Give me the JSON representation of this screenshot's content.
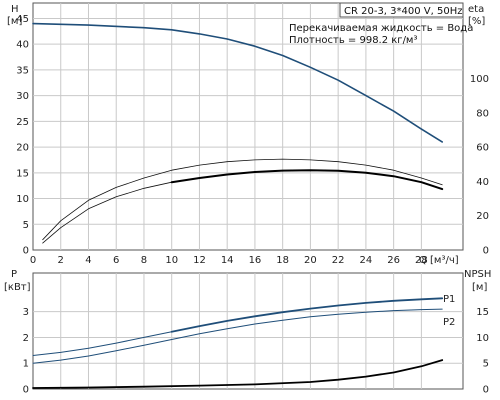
{
  "chart_data": [
    {
      "type": "line",
      "panel": "top",
      "title": "CR 20-3, 3*400 V, 50Hz",
      "info_lines": [
        "Перекачиваемая жидкость = Вода",
        "Плотность = 998.2 кг/м³"
      ],
      "xlabel": "Q",
      "xunit": "[м³/ч]",
      "xlim": [
        0,
        31
      ],
      "xticks": [
        0,
        2,
        4,
        6,
        8,
        10,
        12,
        14,
        16,
        18,
        20,
        22,
        24,
        26,
        28
      ],
      "ylabel_left": "H",
      "yunit_left": "[м]",
      "ylim_left": [
        0,
        48
      ],
      "yticks_left": [
        0,
        5,
        10,
        15,
        20,
        25,
        30,
        35,
        40,
        45
      ],
      "ylabel_right": "eta",
      "yunit_right": "[%]",
      "ylim_right": [
        0,
        144
      ],
      "yticks_right": [
        0,
        20,
        40,
        60,
        80,
        100
      ],
      "grid": true,
      "series": [
        {
          "axis": "left",
          "color": "#1f4e79",
          "width": 1.6,
          "x": [
            0,
            4,
            8,
            10,
            12,
            14,
            16,
            18,
            20,
            22,
            24,
            26,
            28,
            29.5
          ],
          "y": [
            44,
            43.7,
            43.2,
            42.8,
            42.0,
            41.0,
            39.6,
            37.8,
            35.5,
            33.0,
            30.0,
            27.0,
            23.5,
            21.0
          ]
        },
        {
          "axis": "right",
          "color": "#111111",
          "width": 0.8,
          "x": [
            0.7,
            2,
            4,
            6,
            8,
            10,
            12,
            14,
            16,
            18,
            20,
            22,
            24,
            26,
            28,
            29.5
          ],
          "y": [
            6,
            17,
            29,
            36.5,
            42,
            46.5,
            49.5,
            51.5,
            52.5,
            53,
            52.5,
            51.5,
            49.5,
            46.5,
            42,
            38
          ]
        },
        {
          "axis": "right",
          "color": "#111111",
          "width": 0.8,
          "x": [
            0.7,
            2,
            4,
            6,
            8,
            10,
            12,
            14,
            16,
            18,
            20,
            22,
            24,
            26,
            28,
            29.5
          ],
          "y": [
            4,
            13,
            24,
            31,
            36,
            39.5,
            42,
            44,
            45.5,
            46.3,
            46.5,
            46.2,
            45,
            43,
            39.5,
            35.5
          ]
        },
        {
          "axis": "right",
          "color": "#000000",
          "width": 2,
          "x": [
            10,
            12,
            14,
            16,
            18,
            20,
            22,
            24,
            26,
            28,
            29.5
          ],
          "y": [
            39.5,
            42,
            44,
            45.5,
            46.3,
            46.5,
            46.2,
            45,
            43,
            39.5,
            35.5
          ]
        }
      ]
    },
    {
      "type": "line",
      "panel": "bottom",
      "xlim": [
        0,
        31
      ],
      "ylabel_left": "P",
      "yunit_left": "[кВт]",
      "ylim_left": [
        0,
        4.5
      ],
      "yticks_left": [
        0,
        1,
        2,
        3
      ],
      "ylabel_right": "NPSH",
      "yunit_right": "[м]",
      "ylim_right": [
        0,
        22.5
      ],
      "yticks_right": [
        0,
        5,
        10,
        15
      ],
      "grid": true,
      "series": [
        {
          "name": "P1",
          "axis": "left",
          "color": "#1f4e79",
          "width": 1,
          "x": [
            0,
            2,
            4,
            6,
            8,
            10,
            12,
            14,
            16,
            18,
            20,
            22,
            24,
            26,
            28,
            29.5
          ],
          "y": [
            1.3,
            1.42,
            1.58,
            1.78,
            2.0,
            2.22,
            2.44,
            2.64,
            2.82,
            2.98,
            3.12,
            3.24,
            3.34,
            3.42,
            3.48,
            3.52
          ]
        },
        {
          "name": "P2",
          "axis": "left",
          "color": "#1f4e79",
          "width": 1,
          "x": [
            0,
            2,
            4,
            6,
            8,
            10,
            12,
            14,
            16,
            18,
            20,
            22,
            24,
            26,
            28,
            29.5
          ],
          "y": [
            1.0,
            1.12,
            1.28,
            1.48,
            1.7,
            1.92,
            2.14,
            2.34,
            2.52,
            2.67,
            2.8,
            2.9,
            2.98,
            3.04,
            3.08,
            3.1
          ]
        },
        {
          "axis": "left",
          "color": "#1f4e79",
          "width": 1.8,
          "x": [
            10,
            12,
            14,
            16,
            18,
            20,
            22,
            24,
            26,
            28,
            29.5
          ],
          "y": [
            2.22,
            2.44,
            2.64,
            2.82,
            2.98,
            3.12,
            3.24,
            3.34,
            3.42,
            3.48,
            3.52
          ]
        },
        {
          "axis": "right",
          "color": "#000000",
          "width": 1.8,
          "x": [
            0,
            4,
            8,
            12,
            16,
            20,
            22,
            24,
            26,
            28,
            29.5
          ],
          "y": [
            0.2,
            0.3,
            0.45,
            0.65,
            0.9,
            1.35,
            1.8,
            2.4,
            3.2,
            4.4,
            5.6
          ]
        }
      ]
    }
  ]
}
